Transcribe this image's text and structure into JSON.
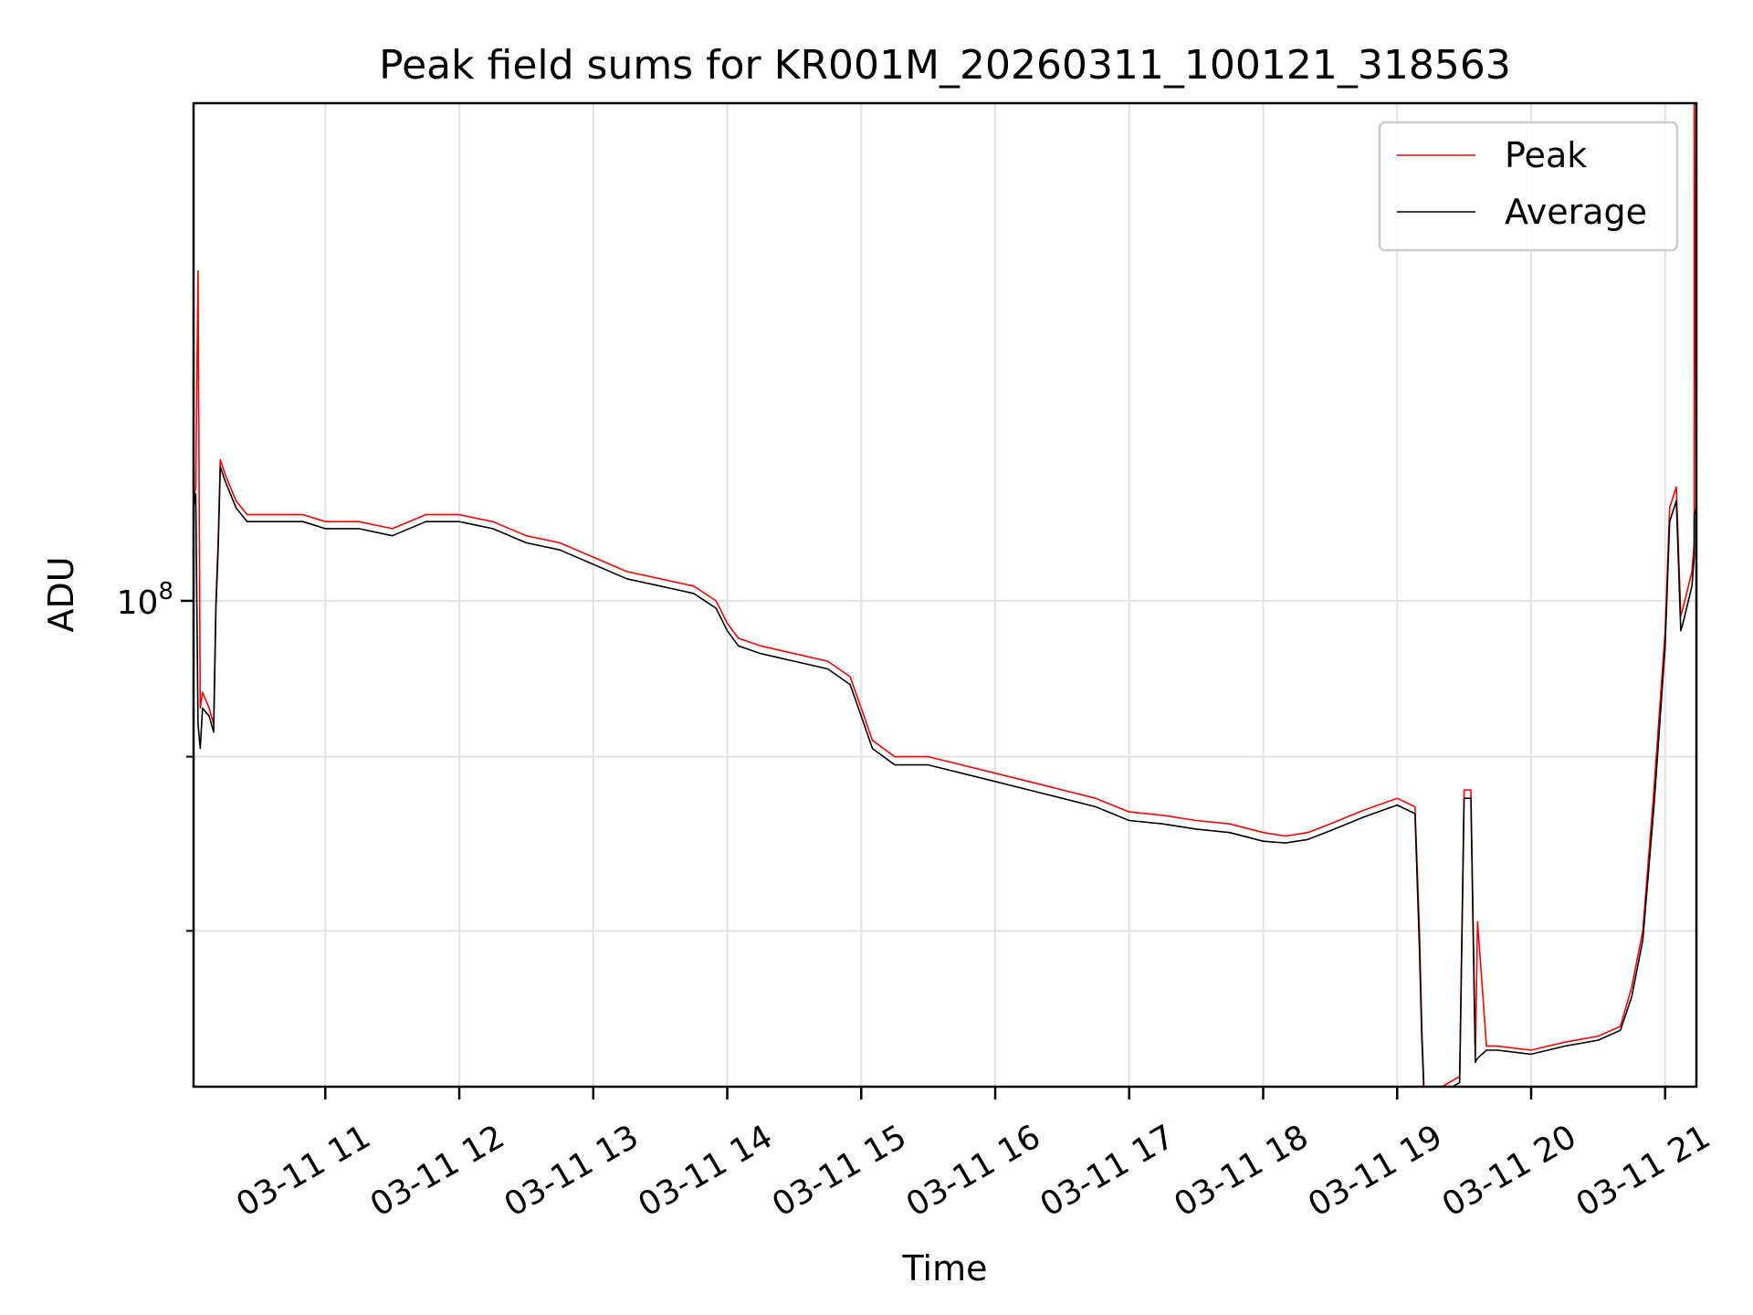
{
  "chart_data": {
    "type": "line",
    "title": "Peak field sums for KR001M_20260311_100121_318563",
    "xlabel": "Time",
    "ylabel": "ADU",
    "x_axis_type": "datetime",
    "xlim": [
      "2026-03-11 10:01",
      "2026-03-11 21:14"
    ],
    "xticks": [
      {
        "value": "2026-03-11 11:00",
        "label": "03-11 11"
      },
      {
        "value": "2026-03-11 12:00",
        "label": "03-11 12"
      },
      {
        "value": "2026-03-11 13:00",
        "label": "03-11 13"
      },
      {
        "value": "2026-03-11 14:00",
        "label": "03-11 14"
      },
      {
        "value": "2026-03-11 15:00",
        "label": "03-11 15"
      },
      {
        "value": "2026-03-11 16:00",
        "label": "03-11 16"
      },
      {
        "value": "2026-03-11 17:00",
        "label": "03-11 17"
      },
      {
        "value": "2026-03-11 18:00",
        "label": "03-11 18"
      },
      {
        "value": "2026-03-11 19:00",
        "label": "03-11 19"
      },
      {
        "value": "2026-03-11 20:00",
        "label": "03-11 20"
      },
      {
        "value": "2026-03-11 21:00",
        "label": "03-11 21"
      }
    ],
    "y_scale": "log",
    "ylim": [
      72000000,
      140000000
    ],
    "yticks_major": [
      {
        "value": 100000000,
        "label_base": "10",
        "label_exp": "8"
      }
    ],
    "yticks_minor": [
      80000000,
      90000000
    ],
    "grid": true,
    "legend_position": "top-right",
    "series": [
      {
        "name": "Peak",
        "color": "#ff0000",
        "x": [
          "2026-03-11 10:01",
          "2026-03-11 10:02",
          "2026-03-11 10:03",
          "2026-03-11 10:04",
          "2026-03-11 10:05",
          "2026-03-11 10:08",
          "2026-03-11 10:10",
          "2026-03-11 10:11",
          "2026-03-11 10:12",
          "2026-03-11 10:13",
          "2026-03-11 10:15",
          "2026-03-11 10:20",
          "2026-03-11 10:25",
          "2026-03-11 10:30",
          "2026-03-11 10:40",
          "2026-03-11 10:50",
          "2026-03-11 11:00",
          "2026-03-11 11:15",
          "2026-03-11 11:30",
          "2026-03-11 11:45",
          "2026-03-11 12:00",
          "2026-03-11 12:15",
          "2026-03-11 12:30",
          "2026-03-11 12:45",
          "2026-03-11 13:00",
          "2026-03-11 13:15",
          "2026-03-11 13:30",
          "2026-03-11 13:45",
          "2026-03-11 13:55",
          "2026-03-11 14:00",
          "2026-03-11 14:05",
          "2026-03-11 14:15",
          "2026-03-11 14:30",
          "2026-03-11 14:45",
          "2026-03-11 14:55",
          "2026-03-11 15:00",
          "2026-03-11 15:05",
          "2026-03-11 15:15",
          "2026-03-11 15:30",
          "2026-03-11 15:45",
          "2026-03-11 16:00",
          "2026-03-11 16:15",
          "2026-03-11 16:30",
          "2026-03-11 16:45",
          "2026-03-11 17:00",
          "2026-03-11 17:15",
          "2026-03-11 17:30",
          "2026-03-11 17:45",
          "2026-03-11 18:00",
          "2026-03-11 18:10",
          "2026-03-11 18:20",
          "2026-03-11 18:30",
          "2026-03-11 18:45",
          "2026-03-11 19:00",
          "2026-03-11 19:08",
          "2026-03-11 19:10",
          "2026-03-11 19:11",
          "2026-03-11 19:12",
          "2026-03-11 19:13",
          "2026-03-11 19:20",
          "2026-03-11 19:28",
          "2026-03-11 19:30",
          "2026-03-11 19:33",
          "2026-03-11 19:35",
          "2026-03-11 19:36",
          "2026-03-11 19:40",
          "2026-03-11 19:41",
          "2026-03-11 19:42",
          "2026-03-11 19:45",
          "2026-03-11 20:00",
          "2026-03-11 20:15",
          "2026-03-11 20:30",
          "2026-03-11 20:40",
          "2026-03-11 20:45",
          "2026-03-11 20:50",
          "2026-03-11 20:55",
          "2026-03-11 21:00",
          "2026-03-11 21:02",
          "2026-03-11 21:05",
          "2026-03-11 21:07",
          "2026-03-11 21:08",
          "2026-03-11 21:12",
          "2026-03-11 21:13",
          "2026-03-11 21:13",
          "2026-03-11 21:14"
        ],
        "y": [
          107000000,
          108000000,
          125000000,
          93000000,
          94000000,
          93000000,
          92000000,
          100000000,
          104000000,
          110000000,
          109000000,
          107000000,
          106000000,
          106000000,
          106000000,
          106000000,
          105500000,
          105500000,
          105000000,
          106000000,
          106000000,
          105500000,
          104500000,
          104000000,
          103000000,
          102000000,
          101500000,
          101000000,
          100000000,
          98500000,
          97500000,
          97000000,
          96500000,
          96000000,
          95000000,
          93000000,
          91000000,
          90000000,
          90000000,
          89500000,
          89000000,
          88500000,
          88000000,
          87500000,
          86700000,
          86500000,
          86200000,
          86000000,
          85500000,
          85300000,
          85500000,
          86000000,
          86800000,
          87500000,
          87000000,
          80000000,
          75000000,
          72000000,
          72000000,
          72000000,
          72500000,
          88000000,
          88000000,
          73500000,
          80500000,
          74000000,
          74000000,
          74000000,
          74000000,
          73800000,
          74200000,
          74500000,
          75000000,
          77000000,
          80000000,
          88000000,
          98000000,
          106500000,
          108000000,
          99000000,
          99500000,
          102000000,
          104000000,
          140000000,
          107000000
        ]
      },
      {
        "name": "Average",
        "color": "#000000",
        "x": [
          "2026-03-11 10:01",
          "2026-03-11 10:02",
          "2026-03-11 10:03",
          "2026-03-11 10:04",
          "2026-03-11 10:05",
          "2026-03-11 10:08",
          "2026-03-11 10:10",
          "2026-03-11 10:11",
          "2026-03-11 10:12",
          "2026-03-11 10:13",
          "2026-03-11 10:15",
          "2026-03-11 10:20",
          "2026-03-11 10:25",
          "2026-03-11 10:30",
          "2026-03-11 10:40",
          "2026-03-11 10:50",
          "2026-03-11 11:00",
          "2026-03-11 11:15",
          "2026-03-11 11:30",
          "2026-03-11 11:45",
          "2026-03-11 12:00",
          "2026-03-11 12:15",
          "2026-03-11 12:30",
          "2026-03-11 12:45",
          "2026-03-11 13:00",
          "2026-03-11 13:15",
          "2026-03-11 13:30",
          "2026-03-11 13:45",
          "2026-03-11 13:55",
          "2026-03-11 14:00",
          "2026-03-11 14:05",
          "2026-03-11 14:15",
          "2026-03-11 14:30",
          "2026-03-11 14:45",
          "2026-03-11 14:55",
          "2026-03-11 15:00",
          "2026-03-11 15:05",
          "2026-03-11 15:15",
          "2026-03-11 15:30",
          "2026-03-11 15:45",
          "2026-03-11 16:00",
          "2026-03-11 16:15",
          "2026-03-11 16:30",
          "2026-03-11 16:45",
          "2026-03-11 17:00",
          "2026-03-11 17:15",
          "2026-03-11 17:30",
          "2026-03-11 17:45",
          "2026-03-11 18:00",
          "2026-03-11 18:10",
          "2026-03-11 18:20",
          "2026-03-11 18:30",
          "2026-03-11 18:45",
          "2026-03-11 19:00",
          "2026-03-11 19:08",
          "2026-03-11 19:10",
          "2026-03-11 19:11",
          "2026-03-11 19:12",
          "2026-03-11 19:13",
          "2026-03-11 19:20",
          "2026-03-11 19:28",
          "2026-03-11 19:30",
          "2026-03-11 19:33",
          "2026-03-11 19:35",
          "2026-03-11 19:36",
          "2026-03-11 19:40",
          "2026-03-11 19:41",
          "2026-03-11 19:42",
          "2026-03-11 19:45",
          "2026-03-11 20:00",
          "2026-03-11 20:15",
          "2026-03-11 20:30",
          "2026-03-11 20:40",
          "2026-03-11 20:45",
          "2026-03-11 20:50",
          "2026-03-11 20:55",
          "2026-03-11 21:00",
          "2026-03-11 21:02",
          "2026-03-11 21:05",
          "2026-03-11 21:07",
          "2026-03-11 21:08",
          "2026-03-11 21:12",
          "2026-03-11 21:13",
          "2026-03-11 21:13",
          "2026-03-11 21:14"
        ],
        "y": [
          106500000,
          107500000,
          92000000,
          90500000,
          93000000,
          92500000,
          91500000,
          99500000,
          103500000,
          109500000,
          108500000,
          106500000,
          105500000,
          105500000,
          105500000,
          105500000,
          105000000,
          105000000,
          104500000,
          105500000,
          105500000,
          105000000,
          104000000,
          103500000,
          102500000,
          101500000,
          101000000,
          100500000,
          99500000,
          98000000,
          97000000,
          96500000,
          96000000,
          95500000,
          94500000,
          92500000,
          90500000,
          89500000,
          89500000,
          89000000,
          88500000,
          88000000,
          87500000,
          87000000,
          86200000,
          86000000,
          85700000,
          85500000,
          85000000,
          84900000,
          85100000,
          85600000,
          86400000,
          87100000,
          86600000,
          79000000,
          74500000,
          71700000,
          71700000,
          71700000,
          72200000,
          87500000,
          87500000,
          73200000,
          73400000,
          73800000,
          73800000,
          73800000,
          73800000,
          73600000,
          74000000,
          74300000,
          74800000,
          76500000,
          79500000,
          87000000,
          97000000,
          105500000,
          107000000,
          98000000,
          98500000,
          101000000,
          103000000,
          106000000,
          106500000
        ]
      }
    ]
  }
}
